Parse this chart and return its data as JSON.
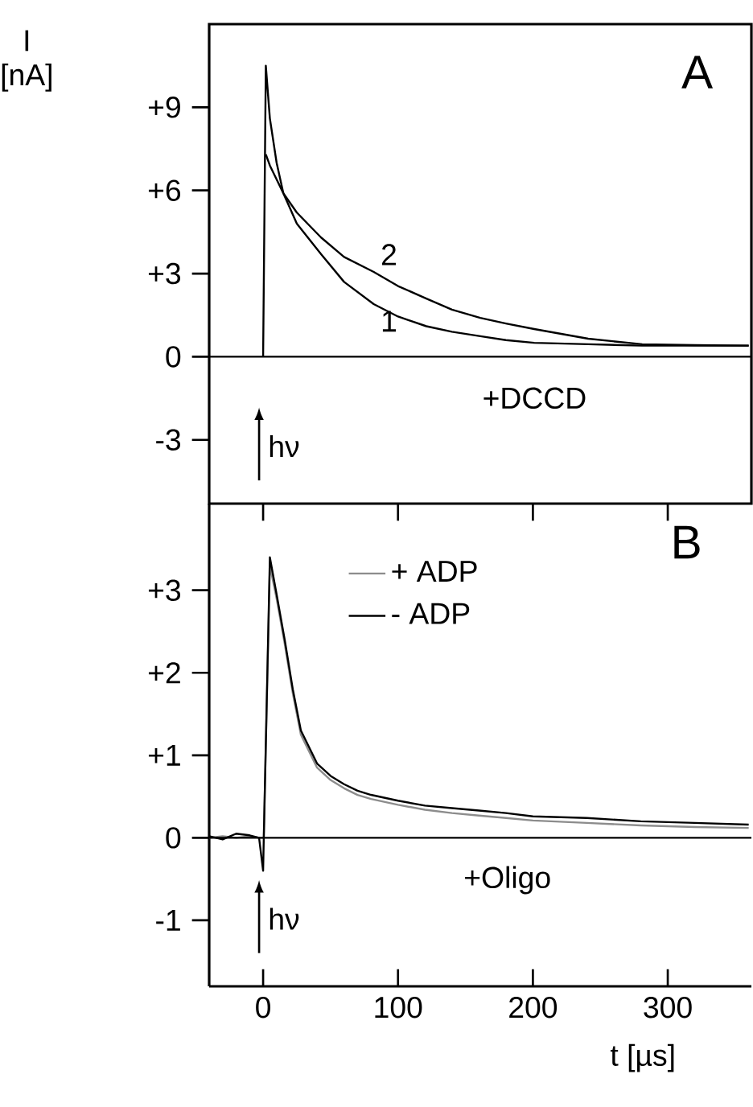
{
  "chart_data": [
    {
      "type": "line",
      "ylabel": "I [nA]",
      "x": [
        0,
        2,
        5,
        10,
        15,
        25,
        43,
        60,
        82,
        100,
        121,
        140,
        161,
        180,
        201,
        241,
        281,
        320,
        360
      ],
      "series": [
        {
          "name": "1",
          "color": "#000000",
          "values": [
            0,
            10.5,
            8.6,
            7.0,
            5.9,
            4.8,
            3.7,
            2.7,
            1.9,
            1.45,
            1.1,
            0.9,
            0.74,
            0.6,
            0.5,
            0.45,
            0.4,
            0.4,
            0.4
          ]
        },
        {
          "name": "2",
          "color": "#000000",
          "values": [
            null,
            7.3,
            6.9,
            6.4,
            5.9,
            5.2,
            4.3,
            3.6,
            3.06,
            2.55,
            2.1,
            1.7,
            1.4,
            1.2,
            1.0,
            0.65,
            0.45,
            0.42,
            0.4
          ]
        }
      ],
      "xlim": [
        -40,
        362
      ],
      "ylim": [
        -5.3,
        12
      ],
      "xticks": [
        0,
        100,
        200,
        300
      ],
      "yticks": [
        {
          "value": -3,
          "label": "-3"
        },
        0,
        {
          "value": 3,
          "label": "+3"
        },
        {
          "value": 6,
          "label": "+6"
        },
        {
          "value": 9,
          "label": "+9"
        }
      ],
      "tick_labels": "y",
      "ref_lines": [
        {
          "axis": "y",
          "value": 0,
          "color": "#000000"
        }
      ],
      "annotations": [
        "A",
        "+DCCD",
        "hν"
      ]
    },
    {
      "type": "line",
      "xlabel": "t [µs]",
      "x": [
        -40,
        -30,
        -20,
        -10,
        -3,
        0,
        0.5,
        5,
        10,
        16,
        22,
        28,
        40,
        50,
        60,
        70,
        80,
        100,
        120,
        140,
        160,
        180,
        200,
        240,
        280,
        320,
        360
      ],
      "series": [
        {
          "name": "+ ADP",
          "color": "#8c8c8c",
          "values": [
            0,
            0.02,
            0,
            0.02,
            0,
            0,
            0,
            3.3,
            2.9,
            2.35,
            1.75,
            1.25,
            0.85,
            0.7,
            0.6,
            0.52,
            0.47,
            0.4,
            0.34,
            0.3,
            0.27,
            0.24,
            0.21,
            0.18,
            0.15,
            0.13,
            0.12
          ]
        },
        {
          "name": "- ADP",
          "color": "#000000",
          "values": [
            0.02,
            -0.02,
            0.05,
            0.03,
            0,
            -0.4,
            0,
            3.4,
            2.95,
            2.4,
            1.8,
            1.3,
            0.9,
            0.75,
            0.65,
            0.57,
            0.52,
            0.45,
            0.39,
            0.36,
            0.33,
            0.3,
            0.26,
            0.24,
            0.2,
            0.18,
            0.16
          ]
        }
      ],
      "xlim": [
        -40,
        362
      ],
      "ylim": [
        -1.8,
        4.05
      ],
      "xticks": [
        0,
        100,
        200,
        300
      ],
      "yticks": [
        {
          "value": -1,
          "label": "-1"
        },
        0,
        {
          "value": 1,
          "label": "+1"
        },
        {
          "value": 2,
          "label": "+2"
        },
        {
          "value": 3,
          "label": "+3"
        }
      ],
      "legend": "top",
      "ref_lines": [
        {
          "axis": "y",
          "value": 0,
          "color": "#000000"
        }
      ],
      "annotations": [
        "B",
        "+Oligo",
        "hν"
      ]
    }
  ]
}
